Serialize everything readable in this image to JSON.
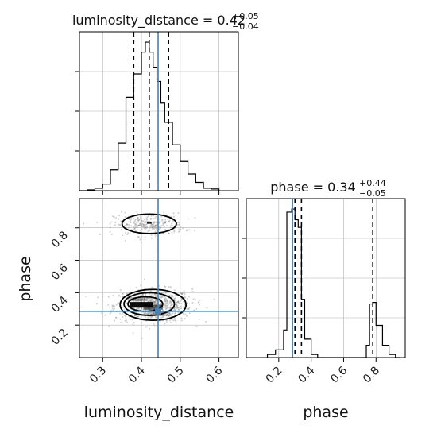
{
  "chart_data": {
    "type": "corner",
    "parameters": [
      "luminosity_distance",
      "phase"
    ],
    "axis_labels": {
      "x_left": "luminosity_distance",
      "x_right": "phase",
      "y_left": "phase"
    },
    "titles": {
      "luminosity_distance": {
        "prefix": "luminosity_distance = 0.42",
        "plus": "+0.05",
        "minus": "−0.04"
      },
      "phase": {
        "prefix": "phase = 0.34",
        "plus": "+0.44",
        "minus": "−0.05"
      }
    },
    "truth": {
      "luminosity_distance": 0.443,
      "phase": 0.285
    },
    "colors": {
      "truth": "#4682b4",
      "hist": "#000000",
      "grid": "#b0b0b0",
      "density": "#000000"
    },
    "grid": true,
    "luminosity_distance_hist": {
      "xlim": [
        0.24,
        0.65
      ],
      "ticks": [
        0.3,
        0.4,
        0.5,
        0.6
      ],
      "tick_labels": [
        "0.3",
        "0.4",
        "0.5",
        "0.6"
      ],
      "bin_edges": [
        0.24,
        0.26,
        0.28,
        0.3,
        0.32,
        0.34,
        0.36,
        0.38,
        0.4,
        0.41,
        0.42,
        0.43,
        0.44,
        0.45,
        0.46,
        0.48,
        0.5,
        0.52,
        0.54,
        0.56,
        0.58,
        0.6
      ],
      "counts": [
        0,
        1,
        3,
        8,
        25,
        57,
        112,
        140,
        166,
        178,
        166,
        148,
        131,
        105,
        82,
        55,
        35,
        20,
        10,
        3,
        2
      ],
      "quantiles": [
        0.38,
        0.42,
        0.47
      ]
    },
    "phase_hist": {
      "xlim": [
        0.0,
        0.98
      ],
      "ticks": [
        0.2,
        0.4,
        0.6,
        0.8
      ],
      "tick_labels": [
        "0.2",
        "0.4",
        "0.6",
        "0.8"
      ],
      "bin_edges": [
        0.13,
        0.18,
        0.23,
        0.25,
        0.28,
        0.3,
        0.32,
        0.34,
        0.36,
        0.4,
        0.44,
        0.74,
        0.76,
        0.78,
        0.8,
        0.84,
        0.88,
        0.92,
        0.95
      ],
      "counts": [
        2,
        5,
        18,
        95,
        97,
        90,
        85,
        38,
        12,
        2,
        0,
        8,
        35,
        36,
        21,
        8,
        2,
        0
      ],
      "quantiles": [
        0.3,
        0.34,
        0.78
      ]
    },
    "scatter_2d": {
      "xlim": [
        0.24,
        0.65
      ],
      "ylim": [
        0.0,
        0.98
      ],
      "x_ticks": [
        0.3,
        0.4,
        0.5,
        0.6
      ],
      "x_tick_labels": [
        "0.3",
        "0.4",
        "0.5",
        "0.6"
      ],
      "y_ticks": [
        0.2,
        0.4,
        0.6,
        0.8
      ],
      "y_tick_labels": [
        "0.2",
        "0.4",
        "0.6",
        "0.8"
      ],
      "modes": [
        {
          "x": 0.43,
          "y": 0.32,
          "sx": 0.05,
          "sy": 0.05,
          "weight": 0.72
        },
        {
          "x": 0.42,
          "y": 0.82,
          "sx": 0.045,
          "sy": 0.035,
          "weight": 0.28
        }
      ],
      "contours": [
        {
          "cx": 0.43,
          "cy": 0.325,
          "rx": 0.085,
          "ry": 0.095
        },
        {
          "cx": 0.42,
          "cy": 0.33,
          "rx": 0.065,
          "ry": 0.07
        },
        {
          "cx": 0.41,
          "cy": 0.33,
          "rx": 0.045,
          "ry": 0.045
        },
        {
          "cx": 0.42,
          "cy": 0.825,
          "rx": 0.07,
          "ry": 0.06
        }
      ]
    }
  }
}
